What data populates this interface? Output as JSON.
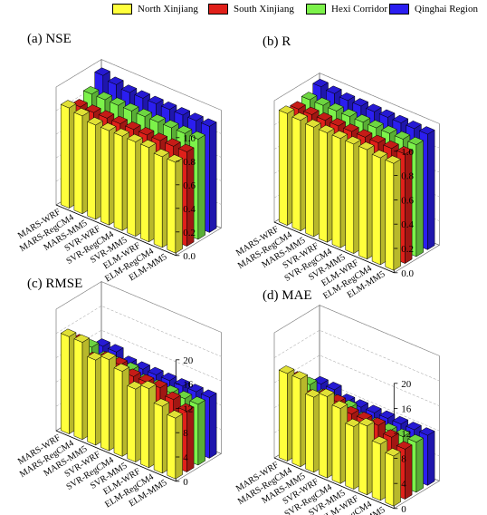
{
  "legend": [
    {
      "name": "North Xinjiang",
      "color": "#ffff3c"
    },
    {
      "name": "South Xinjiang",
      "color": "#e0201a"
    },
    {
      "name": "Hexi Corridor",
      "color": "#7cf24a"
    },
    {
      "name": "Qinghai Region",
      "color": "#2b1ef0"
    }
  ],
  "chart_data": [
    {
      "type": "bar",
      "title": "(a) NSE",
      "categories": [
        "MARS-WRF",
        "MARS-RegCM4",
        "MARS-MM5",
        "SVR-WRF",
        "SVR-RegCM4",
        "SVR-MM5",
        "ELM-WRF",
        "ELM-RegCM4",
        "ELM-MM5"
      ],
      "series": [
        {
          "name": "North Xinjiang",
          "values": [
            0.85,
            0.83,
            0.8,
            0.8,
            0.8,
            0.8,
            0.8,
            0.77,
            0.77
          ]
        },
        {
          "name": "South Xinjiang",
          "values": [
            0.8,
            0.8,
            0.8,
            0.8,
            0.8,
            0.8,
            0.8,
            0.8,
            0.8
          ]
        },
        {
          "name": "Hexi Corridor",
          "values": [
            0.85,
            0.85,
            0.85,
            0.85,
            0.85,
            0.85,
            0.85,
            0.85,
            0.85
          ]
        },
        {
          "name": "Qinghai Region",
          "values": [
            0.95,
            0.92,
            0.9,
            0.9,
            0.9,
            0.9,
            0.9,
            0.9,
            0.9
          ]
        }
      ],
      "zlim": [
        0,
        1.0
      ],
      "ticks": [
        "0.0",
        "0.2",
        "0.4",
        "0.6",
        "0.8",
        "1.0"
      ]
    },
    {
      "type": "bar",
      "title": "(b) R",
      "categories": [
        "MARS-WRF",
        "MARS-RegCM4",
        "MARS-MM5",
        "SVR-WRF",
        "SVR-RegCM4",
        "SVR-MM5",
        "ELM-WRF",
        "ELM-RegCM4",
        "ELM-MM5"
      ],
      "series": [
        {
          "name": "North Xinjiang",
          "values": [
            0.92,
            0.91,
            0.9,
            0.9,
            0.9,
            0.9,
            0.9,
            0.88,
            0.88
          ]
        },
        {
          "name": "South Xinjiang",
          "values": [
            0.9,
            0.9,
            0.9,
            0.9,
            0.9,
            0.9,
            0.9,
            0.9,
            0.9
          ]
        },
        {
          "name": "Hexi Corridor",
          "values": [
            0.92,
            0.92,
            0.92,
            0.92,
            0.92,
            0.92,
            0.92,
            0.92,
            0.92
          ]
        },
        {
          "name": "Qinghai Region",
          "values": [
            0.97,
            0.96,
            0.95,
            0.95,
            0.95,
            0.95,
            0.95,
            0.95,
            0.95
          ]
        }
      ],
      "zlim": [
        0,
        1.0
      ],
      "ticks": [
        "0.0",
        "0.2",
        "0.4",
        "0.6",
        "0.8",
        "1.0"
      ]
    },
    {
      "type": "bar",
      "title": "(c) RMSE",
      "categories": [
        "MARS-WRF",
        "MARS-RegCM4",
        "MARS-MM5",
        "SVR-WRF",
        "SVR-RegCM4",
        "SVR-MM5",
        "ELM-WRF",
        "ELM-RegCM4",
        "ELM-MM5"
      ],
      "series": [
        {
          "name": "North Xinjiang",
          "values": [
            16,
            16,
            14,
            15,
            14,
            12,
            13,
            11,
            10
          ]
        },
        {
          "name": "South Xinjiang",
          "values": [
            14,
            12,
            13,
            13,
            12,
            12,
            12,
            11,
            10
          ]
        },
        {
          "name": "Hexi Corridor",
          "values": [
            12,
            11,
            11,
            11,
            10,
            10,
            10,
            10,
            10
          ]
        },
        {
          "name": "Qinghai Region",
          "values": [
            11,
            11,
            10,
            10,
            10,
            10,
            10,
            10,
            10
          ]
        }
      ],
      "zlim": [
        0,
        20
      ],
      "ticks": [
        "0",
        "4",
        "8",
        "12",
        "16",
        "20"
      ]
    },
    {
      "type": "bar",
      "title": "(d) MAE",
      "categories": [
        "MARS-WRF",
        "MARS-RegCM4",
        "MARS-MM5",
        "SVR-WRF",
        "SVR-RegCM4",
        "SVR-MM5",
        "ELM-WRF",
        "ELM-RegCM4",
        "ELM-MM5"
      ],
      "series": [
        {
          "name": "North Xinjiang",
          "values": [
            14,
            14,
            12,
            13,
            12,
            10,
            11,
            9,
            8
          ]
        },
        {
          "name": "South Xinjiang",
          "values": [
            12,
            10,
            11,
            11,
            10,
            10,
            10,
            9,
            8
          ]
        },
        {
          "name": "Hexi Corridor",
          "values": [
            10,
            9,
            9,
            9,
            8,
            8,
            8,
            8,
            8
          ]
        },
        {
          "name": "Qinghai Region",
          "values": [
            9,
            9,
            8,
            8,
            8,
            8,
            8,
            8,
            8
          ]
        }
      ],
      "zlim": [
        0,
        20
      ],
      "ticks": [
        "0",
        "4",
        "8",
        "12",
        "16",
        "20"
      ]
    }
  ]
}
